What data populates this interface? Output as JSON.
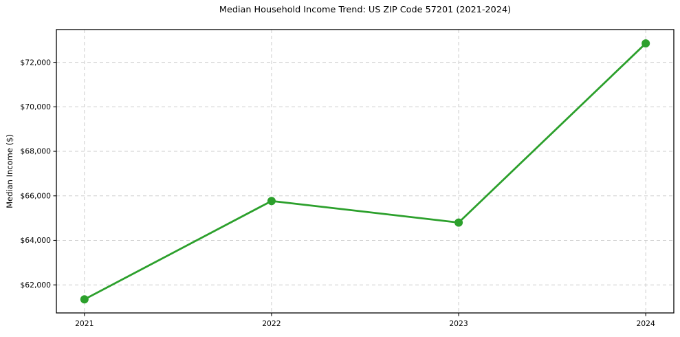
{
  "chart_data": {
    "type": "line",
    "title": "Median Household Income Trend: US ZIP Code 57201 (2021-2024)",
    "xlabel": "",
    "ylabel": "Median Income ($)",
    "x": [
      2021,
      2022,
      2023,
      2024
    ],
    "x_tick_labels": [
      "2021",
      "2022",
      "2023",
      "2024"
    ],
    "series": [
      {
        "name": "Median Household Income",
        "values": [
          61350,
          65770,
          64800,
          72850
        ]
      }
    ],
    "y_ticks": [
      62000,
      64000,
      66000,
      68000,
      70000,
      72000
    ],
    "y_tick_labels": [
      "$62,000",
      "$64,000",
      "$66,000",
      "$68,000",
      "$70,000",
      "$72,000"
    ],
    "ylim": [
      60740,
      73470
    ],
    "xlim": [
      2020.85,
      2024.15
    ],
    "grid": true,
    "legend_position": "none",
    "line_color": "#2ca02c",
    "marker": "circle",
    "grid_color": "#cdcdcd",
    "axis_color": "#000000",
    "background_color": "#ffffff"
  }
}
